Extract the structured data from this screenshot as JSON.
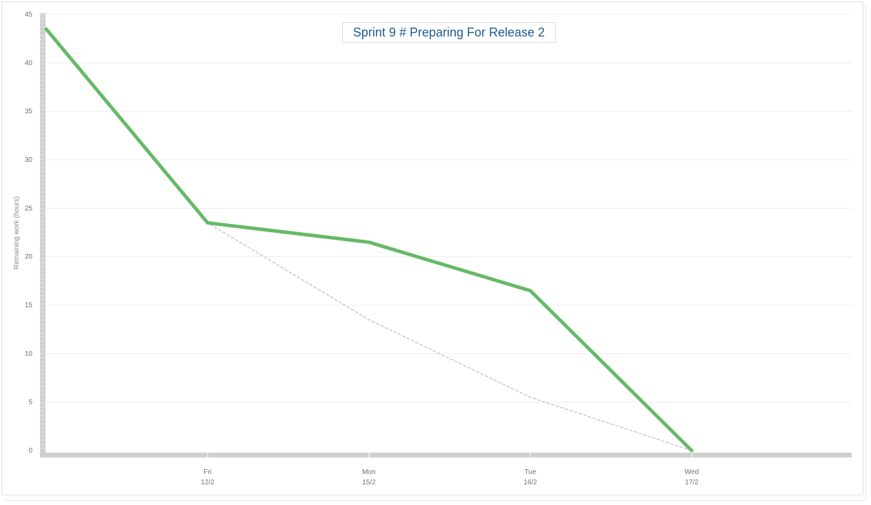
{
  "chart_data": {
    "type": "line",
    "title": "Sprint 9 # Preparing For Release 2",
    "ylabel": "Remaining work (hours)",
    "xlabel": "",
    "ylim": [
      0,
      45
    ],
    "yticks": [
      "0",
      "5",
      "10",
      "15",
      "20",
      "25",
      "30",
      "35",
      "40",
      "45"
    ],
    "categories": [
      {
        "day": "",
        "date": ""
      },
      {
        "day": "Fri",
        "date": "12/2"
      },
      {
        "day": "Mon",
        "date": "15/2"
      },
      {
        "day": "Tue",
        "date": "16/2"
      },
      {
        "day": "Wed",
        "date": "17/2"
      }
    ],
    "grid": true,
    "series": [
      {
        "name": "",
        "style": "solid",
        "color": "#66b966",
        "values": [
          43.5,
          23.5,
          21.5,
          16.5,
          0
        ]
      },
      {
        "name": "",
        "style": "dashed",
        "color": "#b0b0b0",
        "values": [
          43.5,
          23.5,
          13.5,
          5.5,
          0
        ]
      }
    ]
  }
}
